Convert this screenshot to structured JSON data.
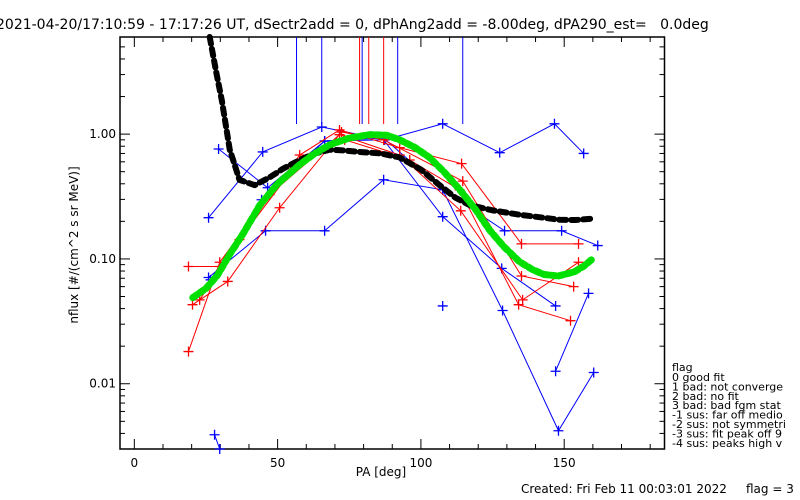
{
  "chart_data": {
    "type": "line",
    "title": "2021-04-20/17:10:59 - 17:17:26 UT, dSectr2add = 0, dPhAng2add = -8.00deg, dPA290_est=   0.0deg",
    "xlabel": "PA [deg]",
    "ylabel": "nflux [#/(cm^2 s sr MeV)]",
    "xlim": [
      -5,
      185
    ],
    "ylim": [
      0.003,
      6.0
    ],
    "yscale": "log",
    "xticks": [
      0,
      50,
      100,
      150
    ],
    "xtick_labels": [
      "0",
      "50",
      "100",
      "150"
    ],
    "yticks": [
      1.0,
      0.1,
      0.01
    ],
    "ytick_labels": [
      "1.00",
      "0.10",
      "0.01"
    ],
    "grid": false,
    "series": [
      {
        "name": "blue-trace-1",
        "color": "#0000ff",
        "x": [
          25.9,
          44.8,
          65.4,
          87.4,
          107.6,
          127.5,
          146.6,
          156.8
        ],
        "y": [
          0.214,
          0.72,
          1.14,
          0.9,
          1.21,
          0.71,
          1.21,
          0.7
        ]
      },
      {
        "name": "blue-trace-2",
        "color": "#0000ff",
        "x": [
          29.4,
          46.5,
          66.4,
          87.0,
          107.6,
          128.5,
          148.0,
          160.3
        ],
        "y": [
          0.76,
          0.372,
          0.88,
          0.93,
          0.358,
          0.0386,
          0.0042,
          0.0123
        ]
      },
      {
        "name": "blue-trace-3",
        "color": "#0000ff",
        "x": [
          25.9,
          45.8,
          66.4,
          87.0,
          107.6,
          129.2,
          149.1,
          161.7
        ],
        "y": [
          0.071,
          0.168,
          0.168,
          0.431,
          0.358,
          0.168,
          0.168,
          0.128
        ]
      },
      {
        "name": "blue-trace-4",
        "color": "#0000ff",
        "x": [
          26.6,
          44.4,
          66.4,
          87.0,
          107.6,
          128.2,
          147.0
        ],
        "y": [
          0.068,
          0.298,
          0.88,
          0.9,
          0.218,
          0.084,
          0.042
        ]
      },
      {
        "name": "blue-trace-5",
        "color": "#0000ff",
        "x": [
          147.0,
          158.5
        ],
        "y": [
          0.0126,
          0.053
        ]
      },
      {
        "name": "blue-trace-6",
        "color": "#0000ff",
        "x": [
          28.0,
          29.8
        ],
        "y": [
          0.0039,
          0.003
        ]
      },
      {
        "name": "blue-point",
        "color": "#0000ff",
        "x": [
          107.6
        ],
        "y": [
          0.042
        ]
      },
      {
        "name": "red-trace-1",
        "color": "#ff0000",
        "x": [
          18.9,
          29.8,
          57.7,
          71.6,
          92.6,
          114.2,
          135.1,
          155.0
        ],
        "y": [
          0.087,
          0.087,
          0.68,
          1.08,
          0.78,
          0.58,
          0.132,
          0.132
        ]
      },
      {
        "name": "red-trace-2",
        "color": "#ff0000",
        "x": [
          20.3,
          32.6,
          50.7,
          72.3,
          87.0,
          114.6,
          135.1,
          153.3
        ],
        "y": [
          0.043,
          0.066,
          0.257,
          1.04,
          0.9,
          0.42,
          0.073,
          0.06
        ]
      },
      {
        "name": "red-trace-3",
        "color": "#ff0000",
        "x": [
          18.9,
          29.8,
          47.2,
          71.6,
          92.6,
          113.9,
          135.5,
          155.0
        ],
        "y": [
          0.0181,
          0.094,
          0.327,
          0.99,
          0.68,
          0.243,
          0.047,
          0.094
        ]
      },
      {
        "name": "red-trace-4",
        "color": "#ff0000",
        "x": [
          22.8,
          36.7,
          57.7,
          73.4,
          96.1,
          113.5,
          134.1,
          152.2
        ],
        "y": [
          0.047,
          0.143,
          0.62,
          0.9,
          0.62,
          0.358,
          0.043,
          0.032
        ]
      },
      {
        "name": "model-fit-black",
        "color": "#000000",
        "x": [
          26.3,
          28.5,
          30.5,
          33.3,
          36.7,
          42.0,
          47.2,
          52.0,
          57.7,
          63.0,
          68.1,
          73.0,
          78.6,
          86.0,
          92.6,
          100.0,
          106.5,
          112.0,
          117.0,
          125.0,
          134.4,
          142.0,
          148.4,
          154.0,
          159.6
        ],
        "y": [
          6.0,
          3.2,
          1.88,
          0.75,
          0.43,
          0.39,
          0.45,
          0.53,
          0.62,
          0.7,
          0.75,
          0.74,
          0.72,
          0.7,
          0.65,
          0.52,
          0.39,
          0.31,
          0.27,
          0.245,
          0.226,
          0.215,
          0.206,
          0.205,
          0.21
        ]
      },
      {
        "name": "model-fit-green",
        "color": "#00e000",
        "x": [
          20.4,
          25.0,
          29.0,
          33.3,
          38.0,
          43.8,
          50.0,
          57.7,
          63.0,
          68.1,
          75.0,
          82.1,
          88.0,
          92.6,
          98.0,
          103.0,
          108.0,
          113.5,
          119.0,
          124.0,
          129.0,
          134.4,
          139.0,
          143.0,
          148.0,
          153.6,
          157.0,
          159.6
        ],
        "y": [
          0.049,
          0.058,
          0.074,
          0.109,
          0.16,
          0.27,
          0.4,
          0.57,
          0.7,
          0.82,
          0.93,
          0.99,
          0.98,
          0.9,
          0.78,
          0.65,
          0.5,
          0.36,
          0.25,
          0.17,
          0.125,
          0.095,
          0.082,
          0.075,
          0.073,
          0.079,
          0.088,
          0.099
        ]
      }
    ],
    "peak_markers": [
      {
        "x": 56.6,
        "color": "#0000ff"
      },
      {
        "x": 65.4,
        "color": "#0000ff"
      },
      {
        "x": 78.6,
        "color": "#ff0000"
      },
      {
        "x": 79.5,
        "color": "#0000ff"
      },
      {
        "x": 81.8,
        "color": "#ff0000"
      },
      {
        "x": 87.0,
        "color": "#ff0000"
      },
      {
        "x": 91.9,
        "color": "#0000ff"
      },
      {
        "x": 114.6,
        "color": "#0000ff"
      }
    ],
    "legend": {
      "title": "flag",
      "placement": "right",
      "entries": [
        " 0 good fit",
        " 1 bad: not converge",
        " 2 bad: no fit",
        " 3 bad: bad fgm stat",
        "-1 sus: far off medio",
        "-2 sus: not symmetri",
        "-3 sus: fit peak off 9",
        "-4 sus: peaks high v"
      ]
    },
    "footer": {
      "created": "Created: Fri Feb 11 00:03:01 2022",
      "flag": "flag = 3"
    }
  }
}
